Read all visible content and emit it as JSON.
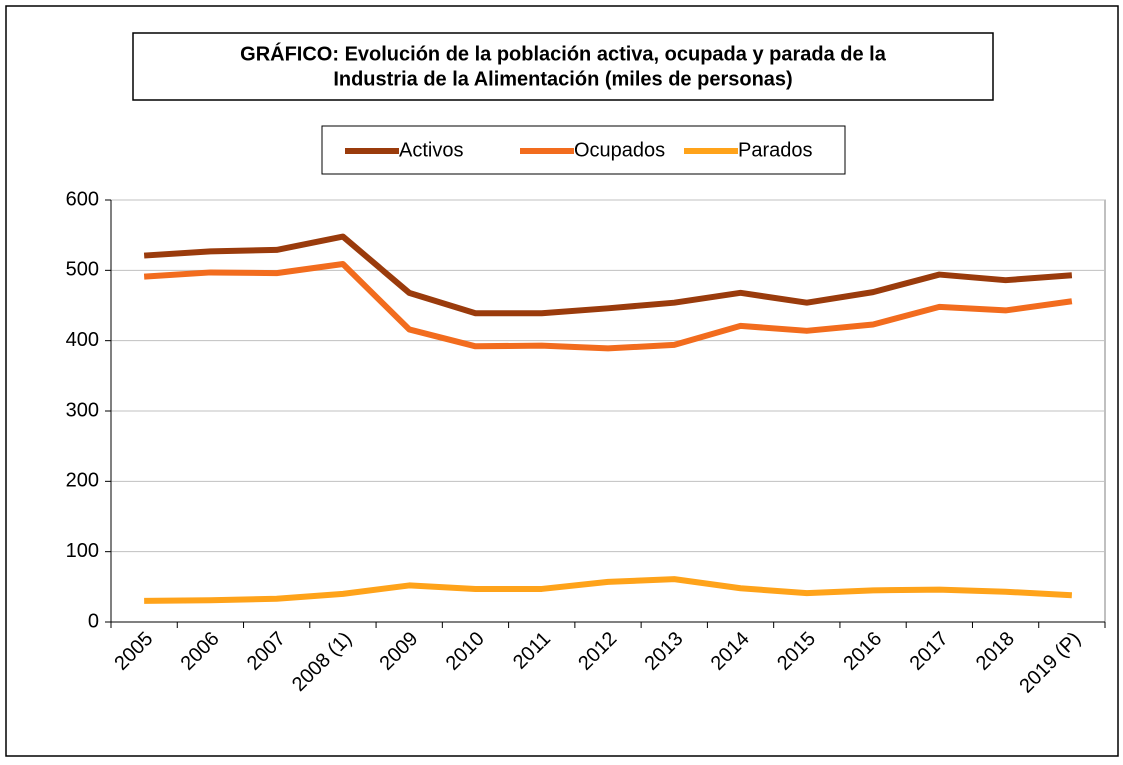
{
  "chart_data": {
    "type": "line",
    "title": [
      "GRÁFICO: Evolución de la población activa, ocupada y parada de la",
      "Industria de la Alimentación (miles de personas)"
    ],
    "categories": [
      "2005",
      "2006",
      "2007",
      "2008 (1)",
      "2009",
      "2010",
      "2011",
      "2012",
      "2013",
      "2014",
      "2015",
      "2016",
      "2017",
      "2018",
      "2019 (P)"
    ],
    "series": [
      {
        "name": "Activos",
        "color": "#9a3b0c",
        "values": [
          521,
          527,
          529,
          548,
          468,
          439,
          439,
          446,
          454,
          468,
          454,
          469,
          494,
          486,
          493
        ]
      },
      {
        "name": "Ocupados",
        "color": "#f26c1e",
        "values": [
          491,
          497,
          496,
          509,
          416,
          392,
          393,
          389,
          394,
          421,
          414,
          423,
          448,
          443,
          456
        ]
      },
      {
        "name": "Parados",
        "color": "#ffa31a",
        "values": [
          30,
          31,
          33,
          40,
          52,
          47,
          47,
          57,
          61,
          48,
          41,
          45,
          46,
          43,
          38
        ]
      }
    ],
    "ylim": [
      0,
      600
    ],
    "yticks": [
      0,
      100,
      200,
      300,
      400,
      500,
      600
    ],
    "grid": true,
    "legend": "top"
  }
}
